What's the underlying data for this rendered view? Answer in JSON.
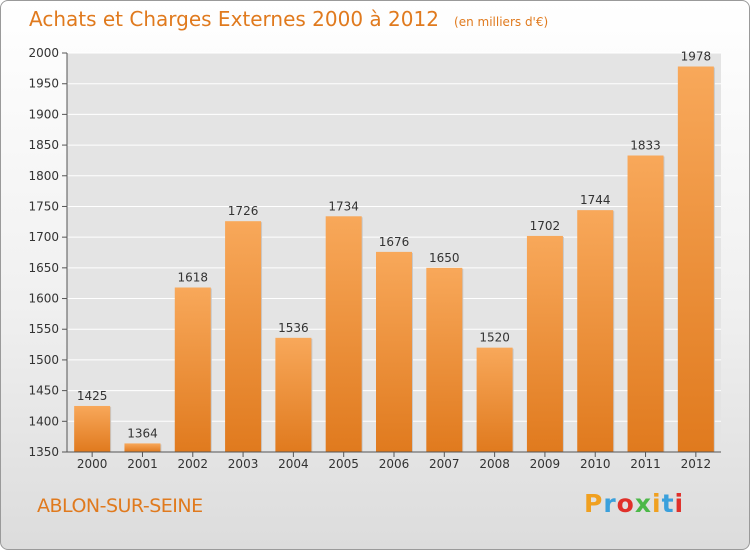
{
  "header": {
    "title": "Achats et Charges Externes 2000 à 2012",
    "subtitle": "(en milliers d'€)"
  },
  "footer": {
    "commune": "ABLON-SUR-SEINE",
    "logo": {
      "text": "Proxiti",
      "colors": [
        "#f0a020",
        "#3aa0dc",
        "#e0302a",
        "#4cb848",
        "#f0a020",
        "#3aa0dc",
        "#e0302a"
      ]
    }
  },
  "colors": {
    "bar_light": "#f8a85a",
    "bar_dark": "#e07a1e",
    "plot_bg": "#e4e4e4",
    "grid": "#ffffff",
    "accent": "#e07a1e"
  },
  "chart_data": {
    "type": "bar",
    "categories": [
      "2000",
      "2001",
      "2002",
      "2003",
      "2004",
      "2005",
      "2006",
      "2007",
      "2008",
      "2009",
      "2010",
      "2011",
      "2012"
    ],
    "values": [
      1425,
      1364,
      1618,
      1726,
      1536,
      1734,
      1676,
      1650,
      1520,
      1702,
      1744,
      1833,
      1978
    ],
    "ylim": [
      1350,
      2000
    ],
    "yticks": [
      1350,
      1400,
      1450,
      1500,
      1550,
      1600,
      1650,
      1700,
      1750,
      1800,
      1850,
      1900,
      1950,
      2000
    ],
    "grid": true,
    "legend": "none"
  }
}
